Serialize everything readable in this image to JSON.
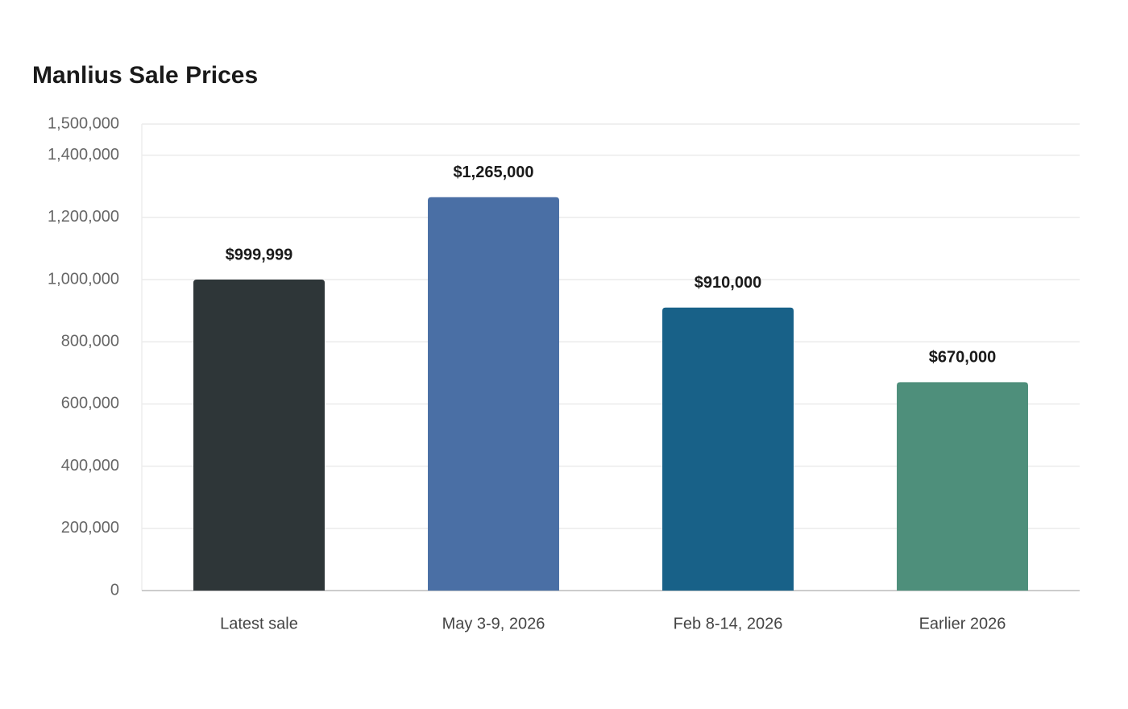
{
  "chart_data": {
    "type": "bar",
    "title": "Manlius Sale Prices",
    "categories": [
      "Latest sale",
      "May 3-9, 2026",
      "Feb 8-14, 2026",
      "Earlier 2026"
    ],
    "values": [
      999999,
      1265000,
      910000,
      670000
    ],
    "value_labels": [
      "$999,999",
      "$1,265,000",
      "$910,000",
      "$670,000"
    ],
    "colors": [
      "#2e3638",
      "#4a6fa5",
      "#186188",
      "#4e8f7b"
    ],
    "ylim": [
      0,
      1500000
    ],
    "yticks": [
      0,
      {
        "value": 200000,
        "label": "200,000"
      },
      {
        "value": 400000,
        "label": "400,000"
      },
      {
        "value": 600000,
        "label": "600,000"
      },
      {
        "value": 800000,
        "label": "800,000"
      },
      {
        "value": 1000000,
        "label": "1,000,000"
      },
      {
        "value": 1200000,
        "label": "1,200,000"
      },
      {
        "value": 1400000,
        "label": "1,400,000"
      },
      {
        "value": 1500000,
        "label": "1,500,000"
      }
    ],
    "grid": true
  }
}
